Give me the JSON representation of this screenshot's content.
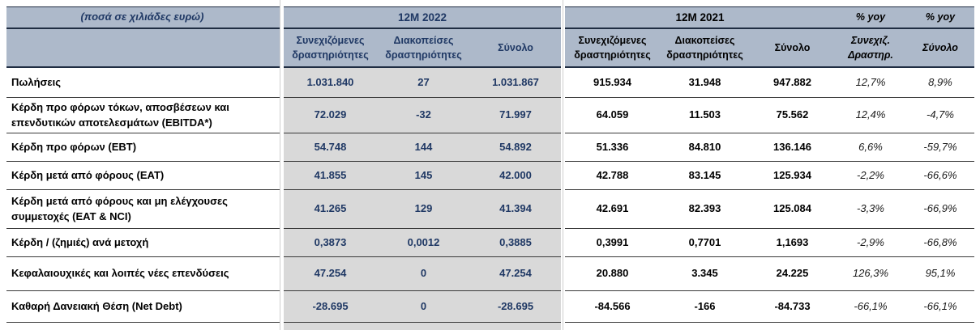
{
  "colors": {
    "header_bg": "#adb9ca",
    "grey_band": "#d9d9d9",
    "accent_navy": "#1f3864",
    "text_black": "#000000"
  },
  "header": {
    "unit_note": "(ποσά σε χιλιάδες ευρώ)",
    "group_2022": "12M 2022",
    "group_2021": "12M 2021",
    "yoy_1": "% yoy",
    "yoy_2": "% yoy",
    "sub_2022": [
      "Συνεχιζόμενες δραστηριότητες",
      "Διακοπείσες δραστηριότητες",
      "Σύνολο"
    ],
    "sub_2021": [
      "Συνεχιζόμενες δραστηριότητες",
      "Διακοπείσες δραστηριότητες",
      "Σύνολο"
    ],
    "sub_yoy": [
      "Συνεχιζ. Δραστηρ.",
      "Σύνολο"
    ]
  },
  "rows": [
    {
      "label": "Πωλήσεις",
      "y2022": [
        "1.031.840",
        "27",
        "1.031.867"
      ],
      "y2021": [
        "915.934",
        "31.948",
        "947.882"
      ],
      "yoy": [
        "12,7%",
        "8,9%"
      ]
    },
    {
      "label": "Κέρδη προ φόρων τόκων, αποσβέσεων και επενδυτικών αποτελεσμάτων (EBITDA*)",
      "y2022": [
        "72.029",
        "-32",
        "71.997"
      ],
      "y2021": [
        "64.059",
        "11.503",
        "75.562"
      ],
      "yoy": [
        "12,4%",
        "-4,7%"
      ]
    },
    {
      "label": "Κέρδη προ φόρων (EBT)",
      "y2022": [
        "54.748",
        "144",
        "54.892"
      ],
      "y2021": [
        "51.336",
        "84.810",
        "136.146"
      ],
      "yoy": [
        "6,6%",
        "-59,7%"
      ]
    },
    {
      "label": "Κέρδη μετά από φόρους (EAT)",
      "y2022": [
        "41.855",
        "145",
        "42.000"
      ],
      "y2021": [
        "42.788",
        "83.145",
        "125.934"
      ],
      "yoy": [
        "-2,2%",
        "-66,6%"
      ]
    },
    {
      "label": "Κέρδη μετά από φόρους και μη ελέγχουσες συμμετοχές (EAT & NCI)",
      "y2022": [
        "41.265",
        "129",
        "41.394"
      ],
      "y2021": [
        "42.691",
        "82.393",
        "125.084"
      ],
      "yoy": [
        "-3,3%",
        "-66,9%"
      ]
    },
    {
      "label": "Κέρδη / (ζημιές) ανά μετοχή",
      "y2022": [
        "0,3873",
        "0,0012",
        "0,3885"
      ],
      "y2021": [
        "0,3991",
        "0,7701",
        "1,1693"
      ],
      "yoy": [
        "-2,9%",
        "-66,8%"
      ]
    },
    {
      "label": "Κεφαλαιουχικές και λοιπές νέες επενδύσεις",
      "y2022": [
        "47.254",
        "0",
        "47.254"
      ],
      "y2021": [
        "20.880",
        "3.345",
        "24.225"
      ],
      "yoy": [
        "126,3%",
        "95,1%"
      ]
    },
    {
      "label": "Καθαρή Δανειακή Θέση (Net Debt)",
      "y2022": [
        "-28.695",
        "0",
        "-28.695"
      ],
      "y2021": [
        "-84.566",
        "-166",
        "-84.733"
      ],
      "yoy": [
        "-66,1%",
        "-66,1%"
      ]
    }
  ]
}
